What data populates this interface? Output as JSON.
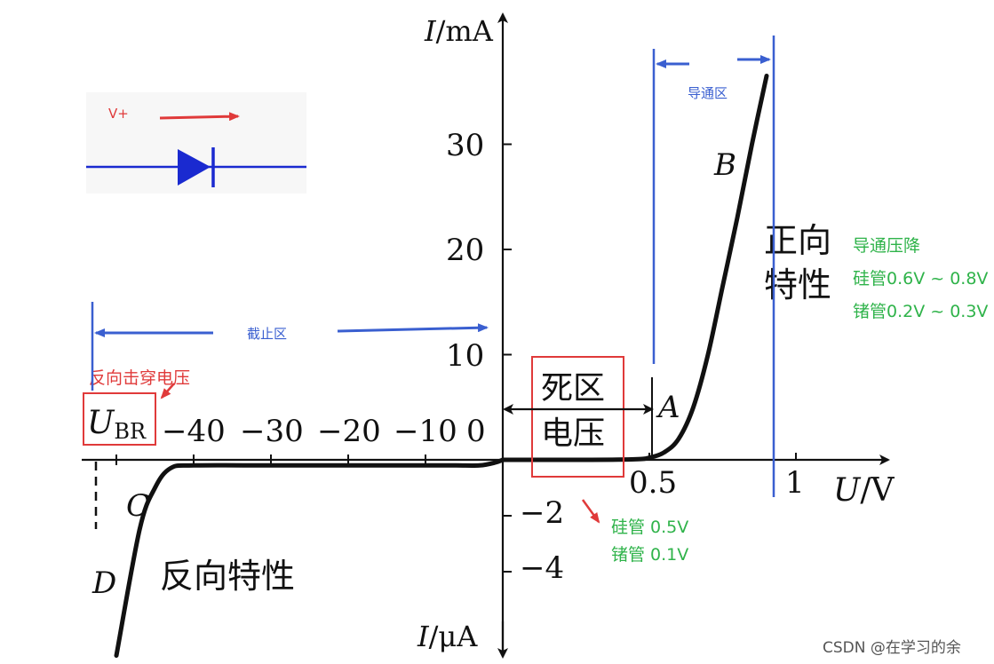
{
  "chart_data": {
    "type": "line",
    "title": "",
    "y_axis_top": {
      "var": "I",
      "unit": "/mA"
    },
    "y_axis_bottom": {
      "var": "I",
      "unit": "/μA"
    },
    "x_axis": {
      "var": "U",
      "unit": "/V"
    },
    "x_ticks_negative": [
      "−40",
      "−30",
      "−20",
      "−10",
      "0"
    ],
    "x_ticks_positive": [
      "0.5",
      "1"
    ],
    "y_ticks_positive": [
      "30",
      "20",
      "10"
    ],
    "y_ticks_negative": [
      "−2",
      "−4"
    ],
    "forward_series": {
      "x": [
        0.0,
        0.3,
        0.45,
        0.5,
        0.55,
        0.6,
        0.65,
        0.7,
        0.75,
        0.8,
        0.85,
        0.9
      ],
      "y_mA": [
        0.0,
        0.0,
        0.05,
        0.2,
        0.7,
        2.0,
        5.0,
        10.0,
        16.5,
        23.0,
        30.0,
        36.5
      ]
    },
    "reverse_series": {
      "x": [
        0,
        -1,
        -3,
        -6,
        -10,
        -20,
        -30,
        -40,
        -43,
        -45,
        -47,
        -50
      ],
      "y_uA": [
        0.0,
        -0.1,
        -0.2,
        -0.2,
        -0.2,
        -0.2,
        -0.2,
        -0.2,
        -0.3,
        -1.0,
        -2.5,
        -7.0
      ]
    },
    "point_labels": [
      "A",
      "B",
      "C",
      "D"
    ],
    "forward_label": [
      "正向",
      "特性"
    ],
    "reverse_label": "反向特性",
    "dead_zone_label": [
      "死区",
      "电压"
    ],
    "ubr_label": {
      "main": "U",
      "sub": "BR"
    }
  },
  "annotations": {
    "conduction_region": "导通区",
    "cutoff_region": "截止区",
    "breakdown_voltage": "反向击穿电压",
    "forward_drop_title": "导通压降",
    "forward_drop_si": "硅管0.6V ~ 0.8V",
    "forward_drop_ge": "锗管0.2V ~ 0.3V",
    "dead_zone_si": "硅管 0.5V",
    "dead_zone_ge": "锗管 0.1V",
    "diode_label": "V+"
  },
  "colors": {
    "curve": "#111111",
    "blue_annotation": "#3a5fd0",
    "red_annotation": "#e03a3a",
    "green_annotation": "#2fb34a",
    "diode": "#1a2ad0"
  },
  "watermark": "CSDN @在学习的余"
}
